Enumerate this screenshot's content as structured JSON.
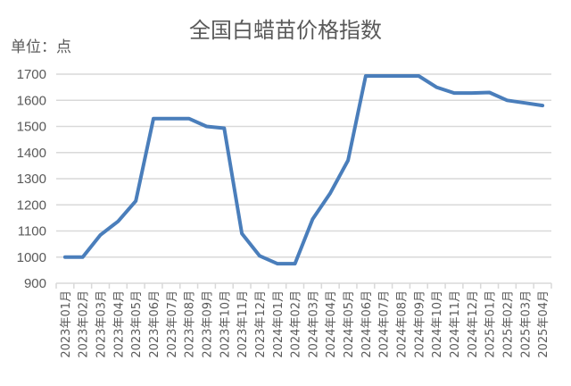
{
  "chart_data": {
    "type": "line",
    "title": "全国白蜡苗价格指数",
    "unit_label": "单位：点",
    "xlabel": "",
    "ylabel": "单位：点",
    "ylim": [
      900,
      1700
    ],
    "yticks": [
      900,
      1000,
      1100,
      1200,
      1300,
      1400,
      1500,
      1600,
      1700
    ],
    "grid": true,
    "legend": "none",
    "categories": [
      "2023年01月",
      "2023年02月",
      "2023年03月",
      "2023年04月",
      "2023年05月",
      "2023年06月",
      "2023年07月",
      "2023年08月",
      "2023年09月",
      "2023年10月",
      "2023年11月",
      "2023年12月",
      "2024年01月",
      "2024年02月",
      "2024年03月",
      "2024年04月",
      "2024年05月",
      "2024年06月",
      "2024年07月",
      "2024年08月",
      "2024年09月",
      "2024年10月",
      "2024年11月",
      "2024年12月",
      "2025年01月",
      "2025年02月",
      "2025年03月",
      "2025年04月"
    ],
    "series": [
      {
        "name": "全国白蜡苗价格指数",
        "color": "#4a7ebb",
        "values": [
          1000,
          1000,
          1085,
          1137,
          1215,
          1530,
          1530,
          1530,
          1500,
          1493,
          1090,
          1005,
          975,
          975,
          1145,
          1245,
          1370,
          1693,
          1693,
          1693,
          1693,
          1650,
          1628,
          1628,
          1630,
          1600,
          1590,
          1580
        ]
      }
    ]
  },
  "colors": {
    "line": "#4a7ebb",
    "grid": "#d9d9d9",
    "text": "#595959"
  }
}
